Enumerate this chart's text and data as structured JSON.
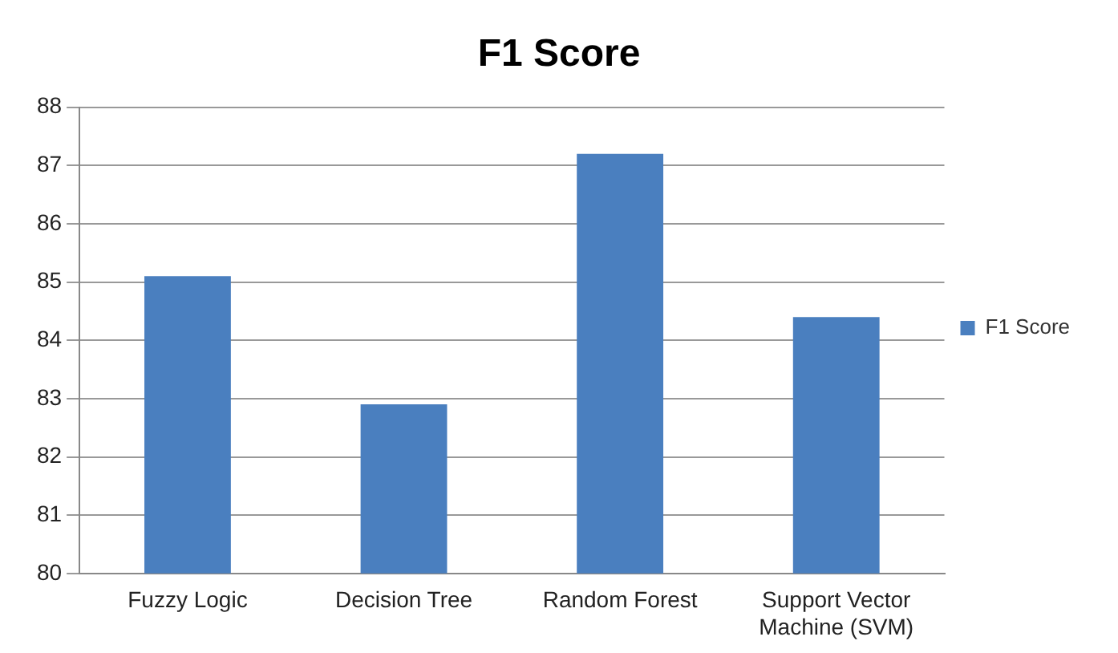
{
  "chart_data": {
    "type": "bar",
    "title": "F1 Score",
    "categories": [
      "Fuzzy Logic",
      "Decision Tree",
      "Random Forest",
      "Support Vector Machine (SVM)"
    ],
    "series": [
      {
        "name": "F1 Score",
        "color": "#4a7fbf",
        "values": [
          85.1,
          82.9,
          87.2,
          84.4
        ]
      }
    ],
    "ylim": [
      80,
      88
    ],
    "yticks": [
      80,
      81,
      82,
      83,
      84,
      85,
      86,
      87,
      88
    ],
    "grid": "y",
    "legend": "right"
  }
}
